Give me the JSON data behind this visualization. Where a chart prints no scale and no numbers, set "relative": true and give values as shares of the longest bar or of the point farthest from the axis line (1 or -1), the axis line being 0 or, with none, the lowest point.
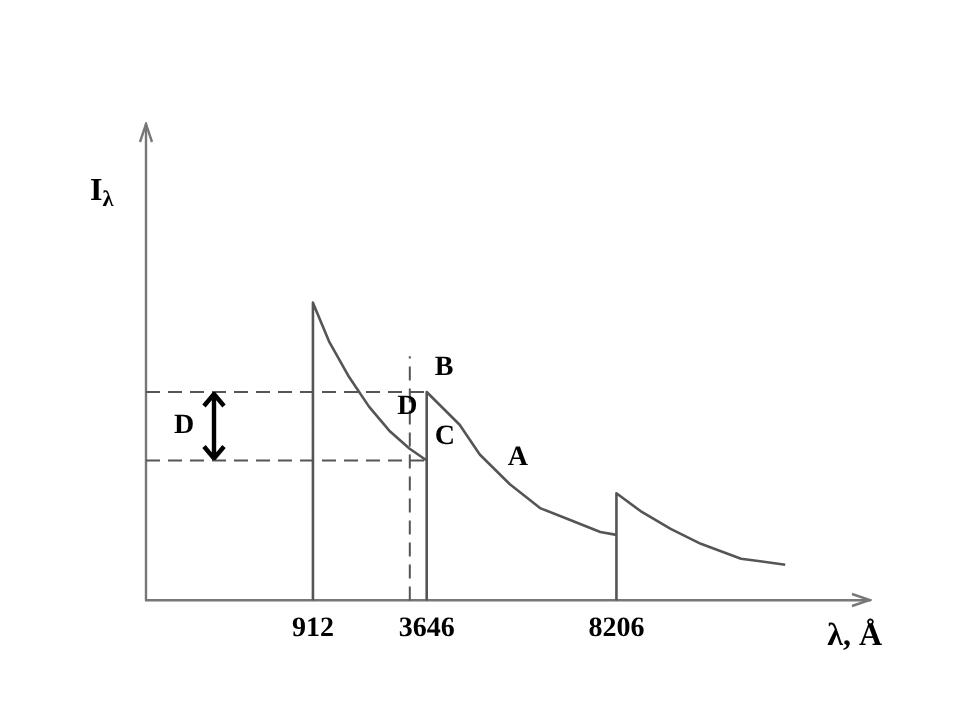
{
  "chart_data": {
    "type": "line",
    "relative": true,
    "ylabel": "I$_{λ}$",
    "xlabel": "λ, Å",
    "x": [
      912,
      912,
      1298,
      1781,
      2264,
      2747,
      3230,
      3646,
      3646,
      3646,
      4438,
      4921,
      5645,
      6370,
      7094,
      7819,
      8206,
      8206,
      8206,
      8785,
      9509,
      10234,
      11200,
      12262
    ],
    "values": [
      0,
      1,
      0.87,
      0.75,
      0.65,
      0.57,
      0.51,
      0.47,
      0,
      0.7,
      0.59,
      0.49,
      0.39,
      0.31,
      0.27,
      0.23,
      0.22,
      0,
      0.36,
      0.3,
      0.24,
      0.19,
      0.14,
      0.12
    ],
    "color": "#555555",
    "xlim": [
      -3100,
      14300
    ],
    "xticks": [
      912,
      3646,
      8206
    ],
    "grid": false,
    "legend": false,
    "marker": "none",
    "line_style": "solid",
    "ref_lines": [
      {
        "axis": "y",
        "value": 0.7,
        "line_style": "dashed",
        "color": "#555555"
      },
      {
        "axis": "y",
        "value": 0.47,
        "line_style": "dashed",
        "color": "#555555"
      },
      {
        "axis": "x",
        "value": 3240,
        "line_style": "dashed",
        "color": "#555555"
      }
    ],
    "annotations": [
      {
        "text": "B",
        "x": 3646,
        "y": 0.7
      },
      {
        "text": "C",
        "x": 3646,
        "y": 0.47
      },
      {
        "text": "D",
        "x": 2747,
        "y": 0.57
      },
      {
        "text": "A",
        "x": 5400,
        "y": 0.4
      },
      "D"
    ]
  }
}
